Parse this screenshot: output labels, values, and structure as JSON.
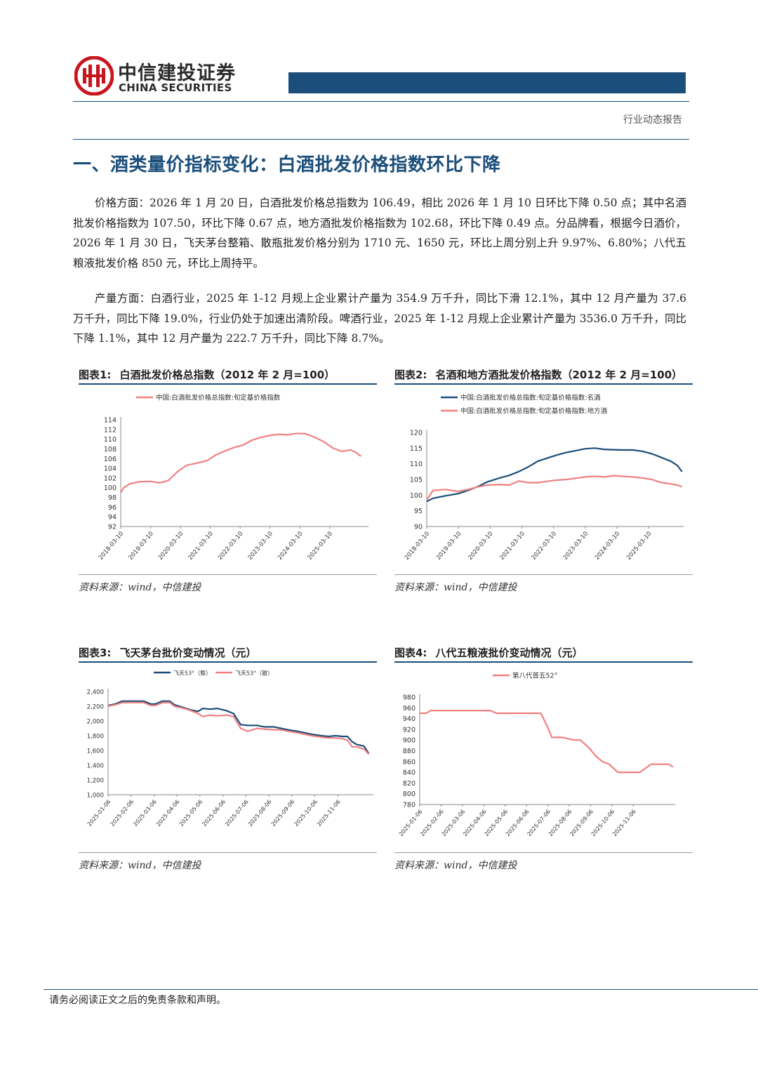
{
  "header": {
    "brand_cn": "中信建投证券",
    "brand_en": "CHINA SECURITIES",
    "report_type": "行业动态报告",
    "brand_color": "#1b4e7a",
    "logo_color": "#c8161d"
  },
  "section_title": "一、酒类量价指标变化：白酒批发价格指数环比下降",
  "paragraphs": [
    "价格方面：2026 年 1 月 20 日，白酒批发价格总指数为 106.49，相比 2026 年 1 月 10 日环比下降 0.50 点；其中名酒批发价格指数为 107.50，环比下降 0.67 点，地方酒批发价格指数为 102.68，环比下降 0.49 点。分品牌看，根据今日酒价，2026 年 1 月 30 日，飞天茅台整箱、散瓶批发价格分别为 1710 元、1650 元，环比上周分别上升 9.97%、6.80%；八代五粮液批发价格 850 元，环比上周持平。",
    "产量方面：白酒行业，2025 年 1-12 月规上企业累计产量为 354.9 万千升，同比下滑 12.1%，其中 12 月产量为 37.6 万千升，同比下降 19.0%，行业仍处于加速出清阶段。啤酒行业，2025 年 1-12 月规上企业累计产量为 3536.0 万千升，同比下降 1.1%，其中 12 月产量为 222.7 万千升，同比下降 8.7%。"
  ],
  "figures": [
    {
      "label": "图表1:",
      "title": "白酒批发价格总指数（2012 年 2 月=100）",
      "source": "资料来源：wind，中信建投"
    },
    {
      "label": "图表2:",
      "title": "名酒和地方酒批发价格指数（2012 年 2 月=100）",
      "source": "资料来源：wind，中信建投"
    },
    {
      "label": "图表3:",
      "title": "飞天茅台批价变动情况（元）",
      "source": "资料来源：wind，中信建投"
    },
    {
      "label": "图表4:",
      "title": "八代五粮液批价变动情况（元）",
      "source": "资料来源：wind，中信建投"
    }
  ],
  "chart_data": [
    {
      "type": "line",
      "categories": [
        "2018-03-10",
        "2019-03-10",
        "2020-03-10",
        "2021-03-10",
        "2022-03-10",
        "2023-03-10",
        "2024-03-10",
        "2025-03-10"
      ],
      "ylim": [
        92,
        114
      ],
      "yticks": [
        92,
        94,
        96,
        98,
        100,
        102,
        104,
        106,
        108,
        110,
        112,
        114
      ],
      "legend": "top-center",
      "series": [
        {
          "name": "中国:白酒批发价格总指数:旬定基价格指数",
          "color": "#f08080",
          "x": [
            2018.0,
            2018.1,
            2018.3,
            2018.6,
            2019.0,
            2019.3,
            2019.6,
            2019.9,
            2020.2,
            2020.5,
            2020.9,
            2021.2,
            2021.5,
            2021.8,
            2022.1,
            2022.4,
            2022.7,
            2023.0,
            2023.3,
            2023.6,
            2023.9,
            2024.2,
            2024.5,
            2024.8,
            2025.1,
            2025.4,
            2025.7,
            2025.9,
            2026.0,
            2026.05
          ],
          "values": [
            99.0,
            100.0,
            100.8,
            101.2,
            101.3,
            101.0,
            101.5,
            103.3,
            104.6,
            105.0,
            105.6,
            106.8,
            107.6,
            108.3,
            108.8,
            109.8,
            110.4,
            110.8,
            111.0,
            110.9,
            111.2,
            111.1,
            110.4,
            109.5,
            108.2,
            107.5,
            107.8,
            107.2,
            106.7,
            106.5
          ]
        }
      ]
    },
    {
      "type": "line",
      "categories": [
        "2018-03-10",
        "2019-03-10",
        "2020-03-10",
        "2021-03-10",
        "2022-03-10",
        "2023-03-10",
        "2024-03-10",
        "2025-03-10"
      ],
      "ylim": [
        90,
        120
      ],
      "yticks": [
        90,
        95,
        100,
        105,
        110,
        115,
        120
      ],
      "legend": "top-center",
      "series": [
        {
          "name": "中国:白酒批发价格总指数:旬定基价格指数:名酒",
          "color": "#1b4e7a",
          "x": [
            2018.0,
            2018.2,
            2018.6,
            2019.0,
            2019.3,
            2019.6,
            2019.9,
            2020.3,
            2020.6,
            2020.9,
            2021.2,
            2021.5,
            2021.8,
            2022.1,
            2022.4,
            2022.7,
            2023.0,
            2023.3,
            2023.6,
            2023.9,
            2024.2,
            2024.5,
            2024.8,
            2025.1,
            2025.4,
            2025.7,
            2025.9,
            2026.05
          ],
          "values": [
            98.0,
            99.0,
            99.8,
            100.5,
            101.5,
            102.7,
            104.2,
            105.5,
            106.3,
            107.5,
            109.0,
            110.8,
            111.8,
            112.8,
            113.6,
            114.2,
            114.8,
            115.0,
            114.6,
            114.5,
            114.4,
            114.4,
            114.0,
            113.2,
            112.0,
            110.8,
            109.5,
            107.5
          ]
        },
        {
          "name": "中国:白酒批发价格总指数:旬定基价格指数:地方酒",
          "color": "#f08080",
          "x": [
            2018.0,
            2018.2,
            2018.6,
            2019.0,
            2019.3,
            2019.6,
            2019.9,
            2020.3,
            2020.6,
            2020.9,
            2021.2,
            2021.5,
            2021.8,
            2022.1,
            2022.4,
            2022.7,
            2023.0,
            2023.3,
            2023.6,
            2023.9,
            2024.2,
            2024.5,
            2024.8,
            2025.1,
            2025.4,
            2025.7,
            2025.9,
            2026.05
          ],
          "values": [
            98.5,
            101.5,
            101.8,
            101.2,
            101.8,
            102.6,
            103.2,
            103.4,
            103.2,
            104.5,
            104.0,
            104.0,
            104.4,
            104.8,
            105.0,
            105.4,
            105.8,
            106.0,
            105.8,
            106.2,
            106.0,
            105.8,
            105.5,
            105.0,
            104.0,
            103.6,
            103.2,
            102.7
          ]
        }
      ]
    },
    {
      "type": "line",
      "categories": [
        "2025-01-06",
        "2025-02-06",
        "2025-03-06",
        "2025-04-06",
        "2025-05-06",
        "2025-06-06",
        "2025-07-06",
        "2025-08-06",
        "2025-09-06",
        "2025-10-06",
        "2025-11-06"
      ],
      "ylim": [
        1000,
        2400
      ],
      "yticks": [
        1000,
        1200,
        1400,
        1600,
        1800,
        2000,
        2200,
        2400
      ],
      "legend": "top-center",
      "series": [
        {
          "name": "飞天53°（整）",
          "color": "#1b4e7a",
          "x": [
            0,
            0.3,
            0.6,
            1.0,
            1.5,
            1.8,
            2.0,
            2.3,
            2.6,
            2.8,
            3.2,
            3.5,
            3.8,
            4.0,
            4.3,
            4.6,
            5.0,
            5.3,
            5.6,
            5.9,
            6.3,
            6.6,
            7.0,
            7.3,
            7.6,
            8.0,
            8.3,
            8.6,
            9.0,
            9.3,
            9.6,
            9.9,
            10.1,
            10.3,
            10.5,
            10.8,
            11.0
          ],
          "values": [
            2210,
            2230,
            2270,
            2270,
            2270,
            2230,
            2230,
            2270,
            2270,
            2220,
            2180,
            2150,
            2130,
            2170,
            2160,
            2170,
            2140,
            2100,
            1950,
            1940,
            1940,
            1920,
            1920,
            1900,
            1880,
            1860,
            1840,
            1820,
            1800,
            1790,
            1800,
            1790,
            1790,
            1720,
            1680,
            1660,
            1560
          ]
        },
        {
          "name": "飞天53°（散）",
          "color": "#f08080",
          "x": [
            0,
            0.3,
            0.6,
            1.0,
            1.5,
            1.8,
            2.0,
            2.3,
            2.6,
            2.8,
            3.2,
            3.5,
            3.8,
            4.0,
            4.3,
            4.6,
            5.0,
            5.3,
            5.6,
            5.9,
            6.3,
            6.6,
            7.0,
            7.3,
            7.6,
            8.0,
            8.3,
            8.6,
            9.0,
            9.3,
            9.6,
            9.9,
            10.1,
            10.3,
            10.5,
            10.8,
            11.0
          ],
          "values": [
            2200,
            2220,
            2250,
            2250,
            2250,
            2210,
            2210,
            2250,
            2250,
            2200,
            2170,
            2140,
            2100,
            2060,
            2080,
            2070,
            2080,
            2060,
            1900,
            1860,
            1900,
            1890,
            1880,
            1880,
            1860,
            1840,
            1820,
            1800,
            1780,
            1770,
            1770,
            1760,
            1740,
            1650,
            1650,
            1620,
            1550
          ]
        }
      ]
    },
    {
      "type": "line",
      "categories": [
        "2025-01-06",
        "2025-02-06",
        "2025-03-06",
        "2025-04-06",
        "2025-05-06",
        "2025-06-06",
        "2025-07-06",
        "2025-08-06",
        "2025-09-06",
        "2025-10-06",
        "2025-11-06"
      ],
      "ylim": [
        780,
        980
      ],
      "yticks": [
        780,
        800,
        820,
        840,
        860,
        880,
        900,
        920,
        940,
        960,
        980
      ],
      "legend": "top-center",
      "series": [
        {
          "name": "第八代普五52°",
          "color": "#f08080",
          "x": [
            0,
            0.3,
            0.5,
            1.0,
            2.0,
            3.0,
            3.2,
            3.5,
            4.0,
            5.0,
            5.3,
            5.5,
            5.8,
            6.0,
            6.5,
            7.0,
            7.3,
            7.7,
            8.0,
            8.3,
            8.6,
            9.0,
            9.3,
            9.6,
            10.0,
            10.5,
            11.0,
            11.3,
            11.5
          ],
          "values": [
            950,
            950,
            955,
            955,
            955,
            955,
            955,
            950,
            950,
            950,
            950,
            950,
            925,
            905,
            905,
            900,
            900,
            885,
            870,
            860,
            855,
            840,
            840,
            840,
            840,
            855,
            855,
            855,
            850
          ]
        }
      ]
    }
  ]
}
